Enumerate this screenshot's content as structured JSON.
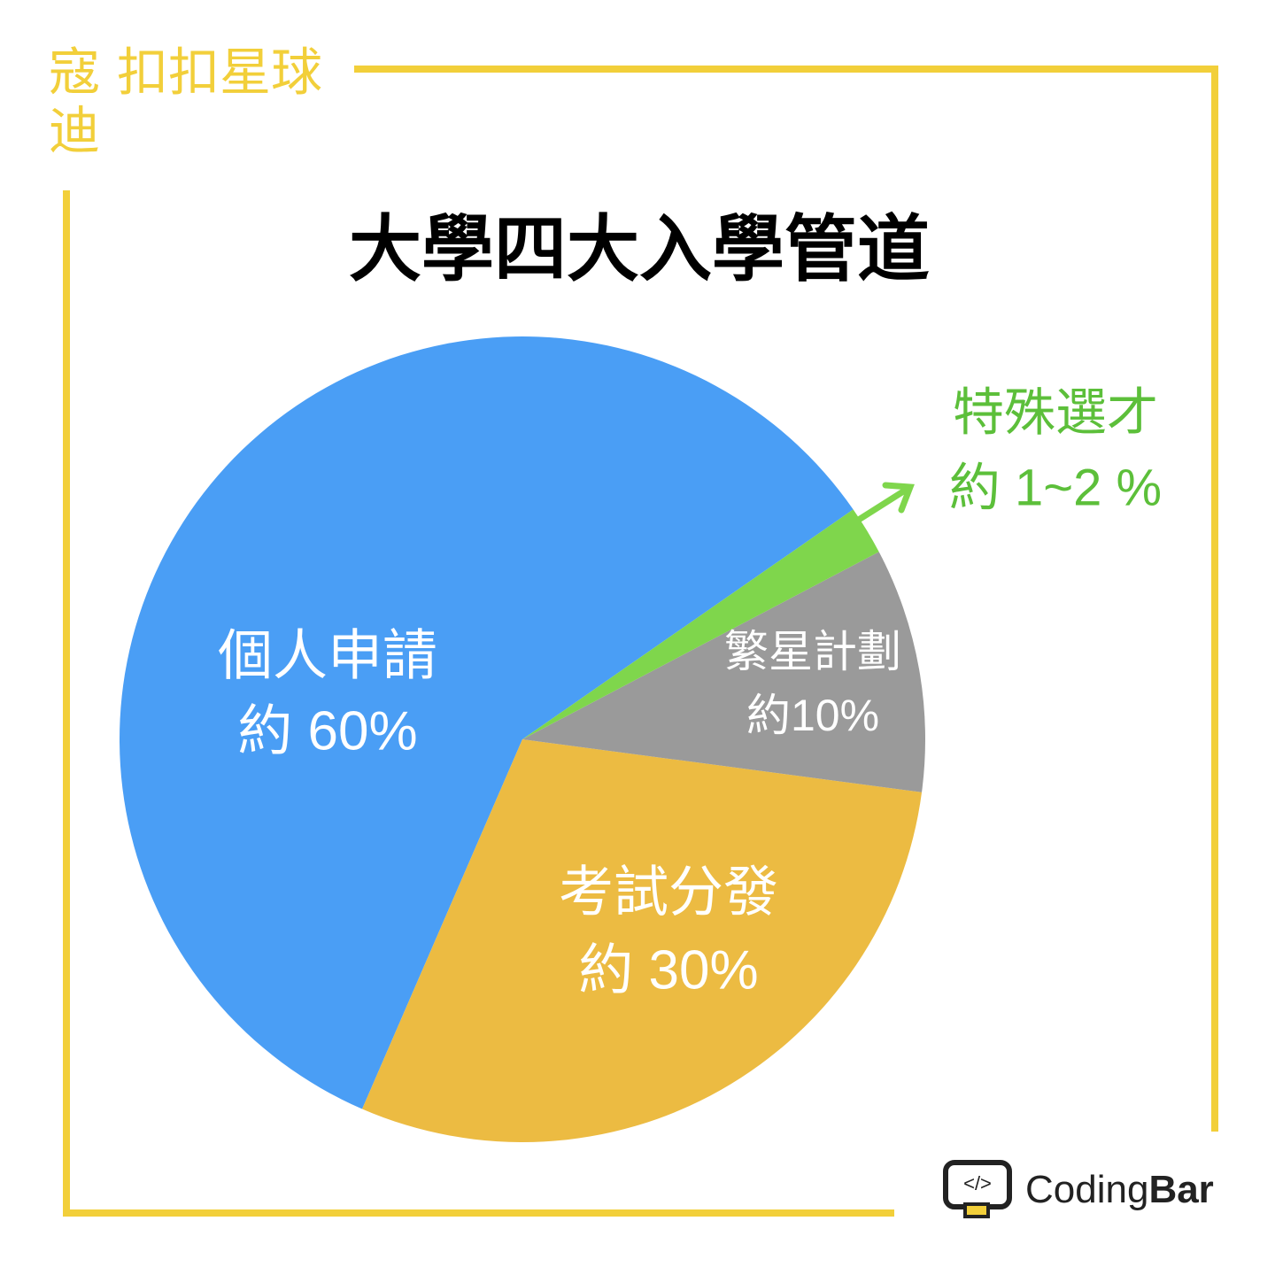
{
  "brand": {
    "name_top": "寇",
    "name_bottom": "迪",
    "planet": "扣扣星球",
    "logo_left": "Coding",
    "logo_right": "Bar"
  },
  "chart_data": {
    "type": "pie",
    "title": "大學四大入學管道",
    "categories": [
      "個人申請",
      "考試分發",
      "繁星計劃",
      "特殊選才"
    ],
    "values": [
      60,
      30,
      10,
      2
    ],
    "value_labels": [
      "約 60%",
      "約 30%",
      "約10%",
      "約 1~2 %"
    ],
    "colors": [
      "#4a9ef5",
      "#ecbb42",
      "#9a9a9a",
      "#7fd64c"
    ]
  }
}
